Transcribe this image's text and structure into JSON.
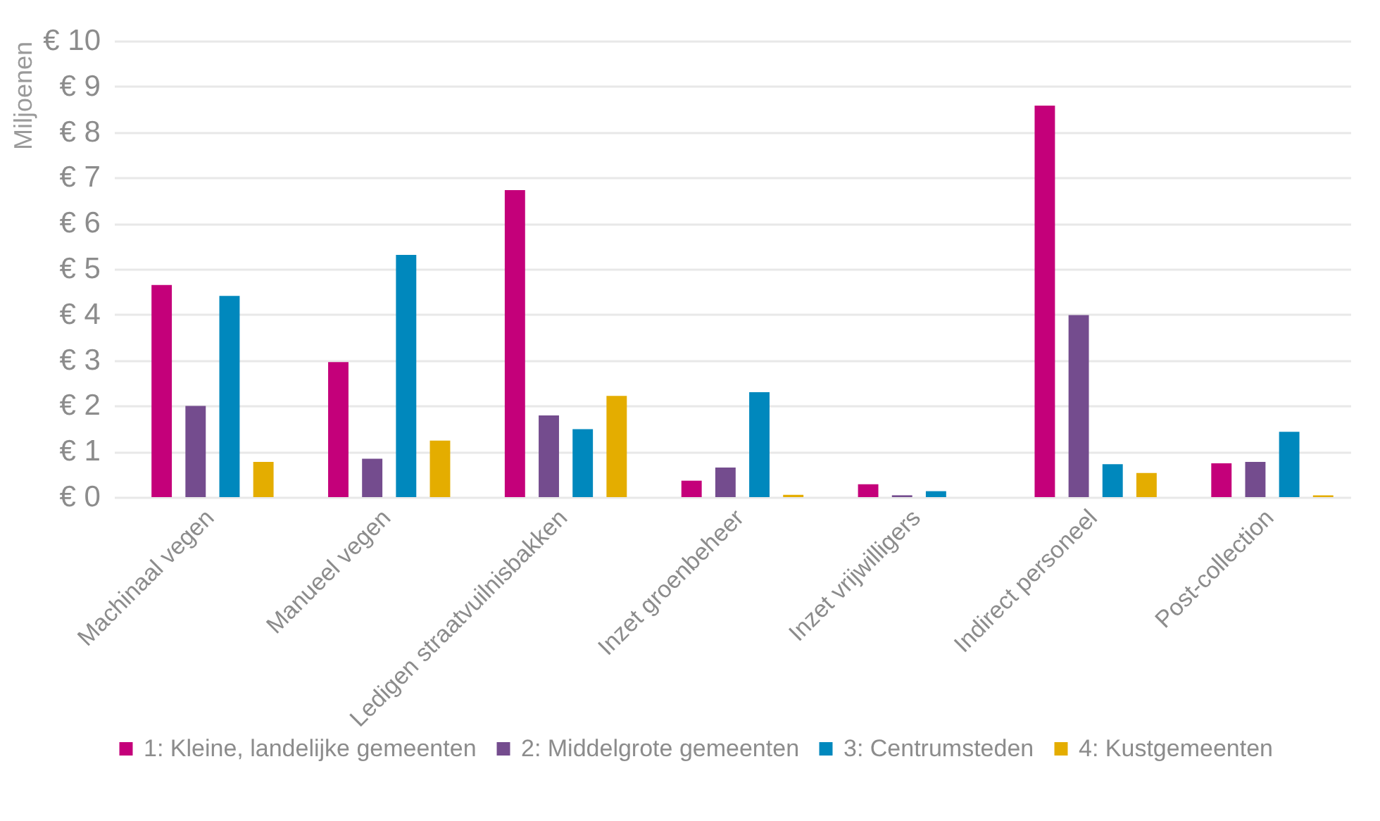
{
  "chart_data": {
    "type": "bar",
    "ylabel": "Miljoenen",
    "categories": [
      "Machinaal vegen",
      "Manueel vegen",
      "Ledigen straatvuilnisbakken",
      "Inzet groenbeheer",
      "Inzet vrijwilligers",
      "Indirect personeel",
      "Post-collection"
    ],
    "series": [
      {
        "name": "1: Kleine, landelijke gemeenten",
        "color": "#c4007a",
        "values": [
          4.65,
          2.96,
          6.73,
          0.36,
          0.28,
          8.58,
          0.74
        ]
      },
      {
        "name": "2: Middelgrote gemeenten",
        "color": "#744c8e",
        "values": [
          2.0,
          0.84,
          1.79,
          0.65,
          0.04,
          3.99,
          0.77
        ]
      },
      {
        "name": "3: Centrumsteden",
        "color": "#0088bd",
        "values": [
          4.41,
          5.31,
          1.49,
          2.3,
          0.13,
          0.72,
          1.43
        ]
      },
      {
        "name": "4: Kustgemeenten",
        "color": "#e4ad00",
        "values": [
          0.77,
          1.24,
          2.22,
          0.05,
          null,
          0.53,
          0.04
        ]
      }
    ],
    "ylim": [
      0,
      10
    ],
    "yticks": [
      {
        "value": 0,
        "label": "€ 0"
      },
      {
        "value": 1,
        "label": "€ 1"
      },
      {
        "value": 2,
        "label": "€ 2"
      },
      {
        "value": 3,
        "label": "€ 3"
      },
      {
        "value": 4,
        "label": "€ 4"
      },
      {
        "value": 5,
        "label": "€ 5"
      },
      {
        "value": 6,
        "label": "€ 6"
      },
      {
        "value": 7,
        "label": "€ 7"
      },
      {
        "value": 8,
        "label": "€ 8"
      },
      {
        "value": 9,
        "label": "€ 9"
      },
      {
        "value": 10,
        "label": "€ 10"
      }
    ],
    "grid": "y",
    "legend": "bottom"
  }
}
